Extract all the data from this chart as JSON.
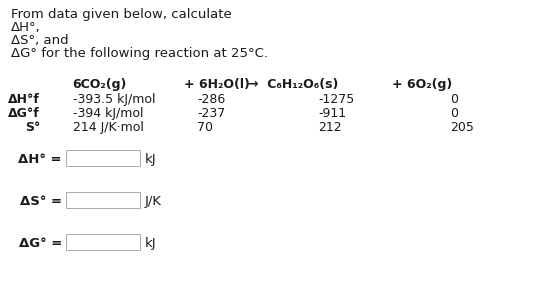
{
  "title_lines": [
    "From data given below, calculate",
    "ΔH°,",
    "ΔS°, and",
    "ΔG° for the following reaction at 25°C."
  ],
  "col_header_co2": "6CO₂(g)",
  "col_header_h2o": "+ 6H₂O(l)",
  "col_header_glucose": "→  C₆H₁₂O₆(s)",
  "col_header_o2": "+ 6O₂(g)",
  "row_label_dH": "ΔH°f",
  "row_label_dG": "ΔG°f",
  "row_label_S": "S°",
  "row_unit_dH": "-393.5 kJ/mol",
  "row_unit_dG": "-394 kJ/mol",
  "row_unit_S": "214 J/K·mol",
  "h2o_vals": [
    "-286",
    "-237",
    "70"
  ],
  "glucose_vals": [
    "-1275",
    "-911",
    "212"
  ],
  "o2_vals": [
    "0",
    "0",
    "205"
  ],
  "ans_label_dH": "ΔH° =",
  "ans_label_dS": "ΔS° =",
  "ans_label_dG": "ΔG° =",
  "ans_unit_dH": "kJ",
  "ans_unit_dS": "J/K",
  "ans_unit_dG": "kJ",
  "bg_color": "#ffffff",
  "text_color": "#1a1a1a",
  "box_edge_color": "#aaaaaa"
}
